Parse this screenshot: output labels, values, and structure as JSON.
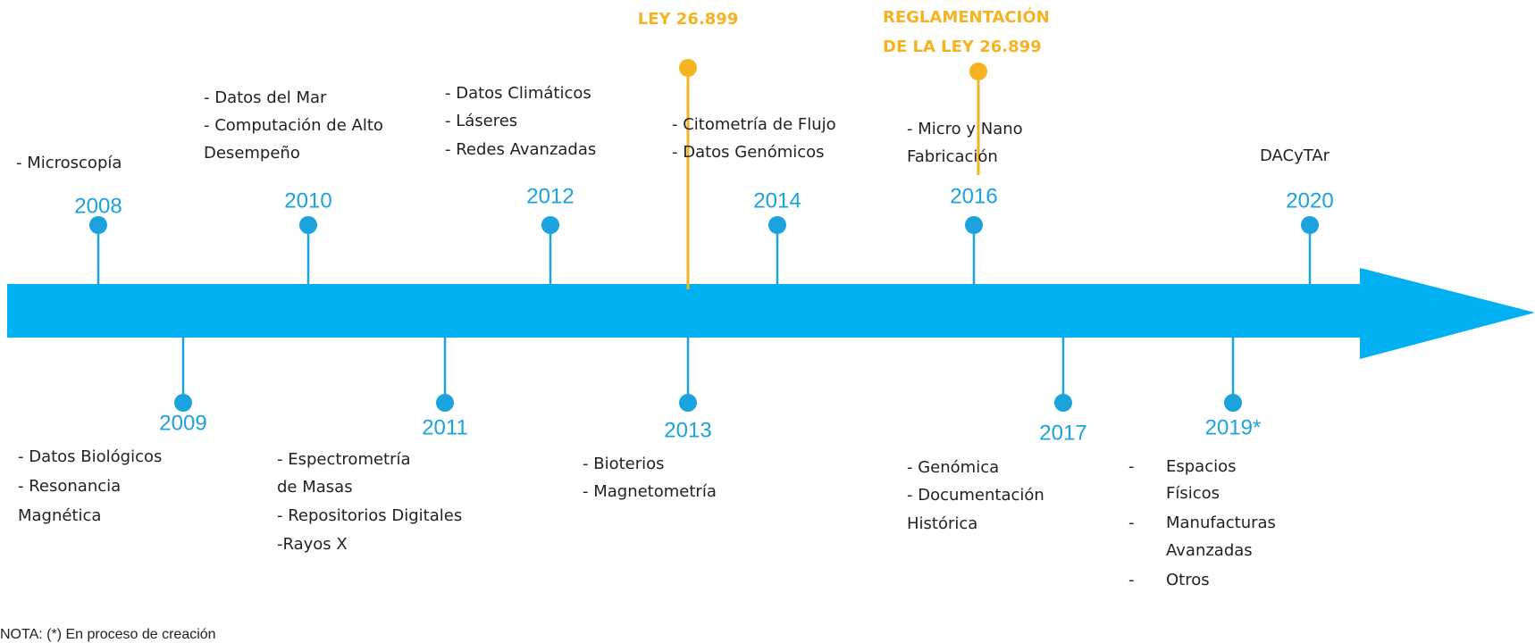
{
  "timeline": {
    "events": [
      {
        "year": "2008",
        "items": [
          "- Microscopía"
        ]
      },
      {
        "year": "2009",
        "items": [
          "- Datos Biológicos",
          "- Resonancia",
          "Magnética"
        ]
      },
      {
        "year": "2010",
        "items": [
          "- Datos del Mar",
          "- Computación de Alto",
          "Desempeño"
        ]
      },
      {
        "year": "2011",
        "items": [
          "- Espectrometría",
          "de Masas",
          "- Repositorios Digitales",
          "-Rayos X"
        ]
      },
      {
        "year": "2012",
        "items": [
          "- Datos Climáticos",
          "- Láseres",
          "- Redes Avanzadas"
        ]
      },
      {
        "year": "2013",
        "items": [
          "- Bioterios",
          "- Magnetometría"
        ]
      },
      {
        "year": "2014",
        "items": [
          "- Citometría de Flujo",
          "- Datos Genómicos"
        ]
      },
      {
        "year": "2016",
        "items": [
          "- Micro y Nano",
          "Fabricación"
        ]
      },
      {
        "year": "2017",
        "items": [
          "- Genómica",
          "- Documentación",
          "Histórica"
        ]
      },
      {
        "year": "2019*",
        "items": [
          "-",
          "Espacios",
          "Físicos",
          "-",
          "Manufacturas",
          "Avanzadas",
          "-",
          "Otros"
        ]
      },
      {
        "year": "2020",
        "items": [
          "DACyTAr"
        ]
      }
    ],
    "milestones": [
      {
        "lines": [
          "LEY 26.899"
        ]
      },
      {
        "lines": [
          "REGLAMENTACIÓN",
          "DE LA LEY 26.899"
        ]
      }
    ],
    "note": "NOTA: (*) En proceso de creación"
  }
}
